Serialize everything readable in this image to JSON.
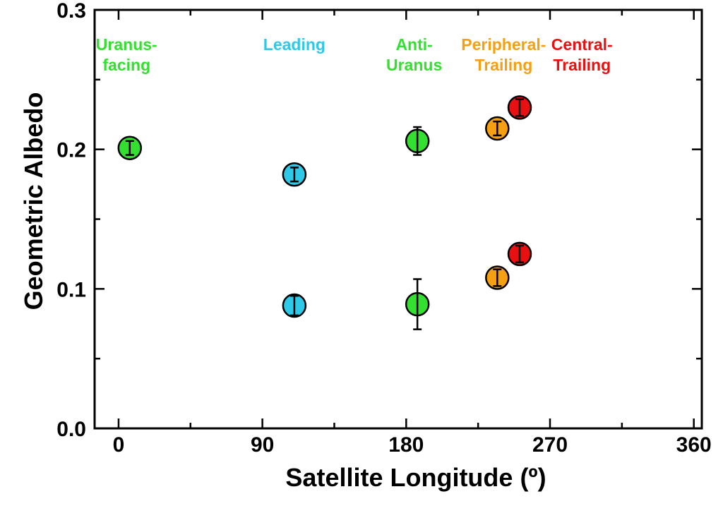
{
  "chart_data": {
    "type": "scatter",
    "xlabel": "Satellite Longitude (º)",
    "ylabel": "Geometric Albedo",
    "xlim": [
      -15,
      365
    ],
    "ylim": [
      0,
      0.3
    ],
    "x_ticks": [
      0,
      90,
      180,
      270,
      360
    ],
    "x_tick_labels": [
      "0",
      "90",
      "180",
      "270",
      "360"
    ],
    "y_ticks": [
      0,
      0.1,
      0.2,
      0.3
    ],
    "y_tick_labels": [
      "0.0",
      "0.1",
      "0.2",
      "0.3"
    ],
    "grid": false,
    "groups": [
      {
        "label_lines": [
          "Uranus-",
          "facing"
        ],
        "color": "#33e02f",
        "label_x": 5
      },
      {
        "label_lines": [
          "Leading"
        ],
        "color": "#2fc9e8",
        "label_x": 110
      },
      {
        "label_lines": [
          "Anti-",
          "Uranus"
        ],
        "color": "#33e02f",
        "label_x": 185
      },
      {
        "label_lines": [
          "Peripheral-",
          "Trailing"
        ],
        "color": "#f5a012",
        "label_x": 241
      },
      {
        "label_lines": [
          "Central-",
          "Trailing"
        ],
        "color": "#e81010",
        "label_x": 290
      }
    ],
    "points": [
      {
        "x": 7,
        "y": 0.201,
        "err": 0.005,
        "color": "#33e02f"
      },
      {
        "x": 110,
        "y": 0.182,
        "err": 0.005,
        "color": "#2fc9e8"
      },
      {
        "x": 110,
        "y": 0.088,
        "err": 0.007,
        "color": "#2fc9e8"
      },
      {
        "x": 187,
        "y": 0.206,
        "err": 0.01,
        "color": "#33e02f"
      },
      {
        "x": 187,
        "y": 0.089,
        "err": 0.018,
        "color": "#33e02f"
      },
      {
        "x": 237,
        "y": 0.215,
        "err": 0.005,
        "color": "#f5a012"
      },
      {
        "x": 237,
        "y": 0.108,
        "err": 0.006,
        "color": "#f5a012"
      },
      {
        "x": 251,
        "y": 0.23,
        "err": 0.006,
        "color": "#e81010"
      },
      {
        "x": 251,
        "y": 0.125,
        "err": 0.006,
        "color": "#e81010"
      }
    ]
  }
}
